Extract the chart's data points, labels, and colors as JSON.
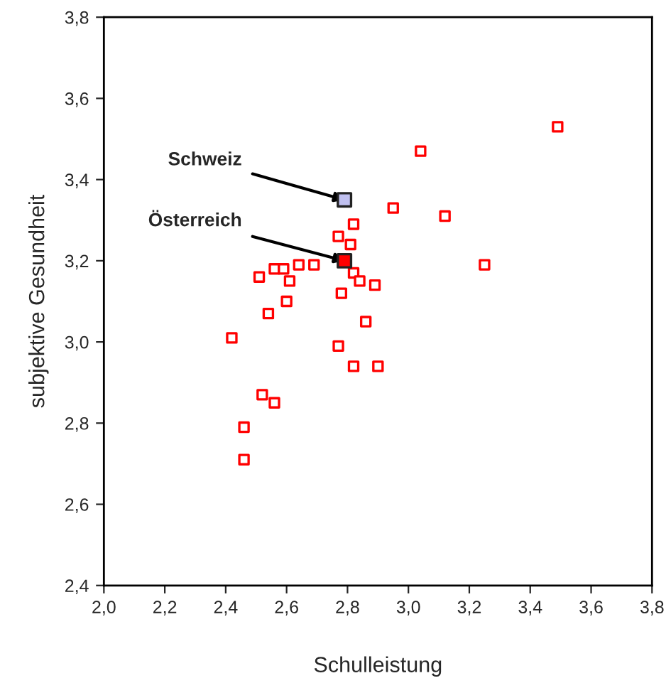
{
  "chart_data": {
    "type": "scatter",
    "xlabel": "Schulleistung",
    "ylabel": "subjektive Gesundheit",
    "marker": "square",
    "grid": false,
    "legend": false,
    "xlim": [
      2.0,
      3.8
    ],
    "ylim": [
      2.4,
      3.8
    ],
    "xticks": [
      {
        "value": 2.0,
        "label": "2,0"
      },
      {
        "value": 2.2,
        "label": "2,2"
      },
      {
        "value": 2.4,
        "label": "2,4"
      },
      {
        "value": 2.6,
        "label": "2,6"
      },
      {
        "value": 2.8,
        "label": "2,8"
      },
      {
        "value": 3.0,
        "label": "3,0"
      },
      {
        "value": 3.2,
        "label": "3,2"
      },
      {
        "value": 3.4,
        "label": "3,4"
      },
      {
        "value": 3.6,
        "label": "3,6"
      },
      {
        "value": 3.8,
        "label": "3,8"
      }
    ],
    "yticks": [
      {
        "value": 2.4,
        "label": "2,4"
      },
      {
        "value": 2.6,
        "label": "2,6"
      },
      {
        "value": 2.8,
        "label": "2,8"
      },
      {
        "value": 3.0,
        "label": "3,0"
      },
      {
        "value": 3.2,
        "label": "3,2"
      },
      {
        "value": 3.4,
        "label": "3,4"
      },
      {
        "value": 3.6,
        "label": "3,6"
      },
      {
        "value": 3.8,
        "label": "3,8"
      }
    ],
    "series": [
      {
        "color": "#ff0000",
        "x": [
          3.04,
          2.95,
          3.12,
          3.25,
          2.82,
          2.77,
          2.81,
          2.56,
          2.59,
          2.64,
          2.69,
          2.51,
          2.61,
          2.82,
          2.84,
          2.89,
          2.78,
          2.6,
          2.54,
          2.86,
          2.42,
          2.77,
          2.9,
          2.82,
          2.52,
          2.56,
          2.46,
          2.46,
          3.49
        ],
        "values": [
          3.47,
          3.33,
          3.31,
          3.19,
          3.29,
          3.26,
          3.24,
          3.18,
          3.18,
          3.19,
          3.19,
          3.16,
          3.15,
          3.17,
          3.15,
          3.14,
          3.12,
          3.1,
          3.07,
          3.05,
          3.01,
          2.99,
          2.94,
          2.94,
          2.87,
          2.85,
          2.79,
          2.71,
          3.53
        ]
      },
      {
        "color": "#c0c0f0",
        "x": [
          2.79
        ],
        "values": [
          3.35
        ]
      },
      {
        "color": "#ff0000",
        "x": [
          2.79
        ],
        "values": [
          3.2
        ]
      }
    ],
    "annotations": [
      {
        "text": "Schweiz",
        "x": 2.79,
        "y": 3.35
      },
      {
        "text": "Österreich",
        "x": 2.79,
        "y": 3.2
      }
    ]
  }
}
